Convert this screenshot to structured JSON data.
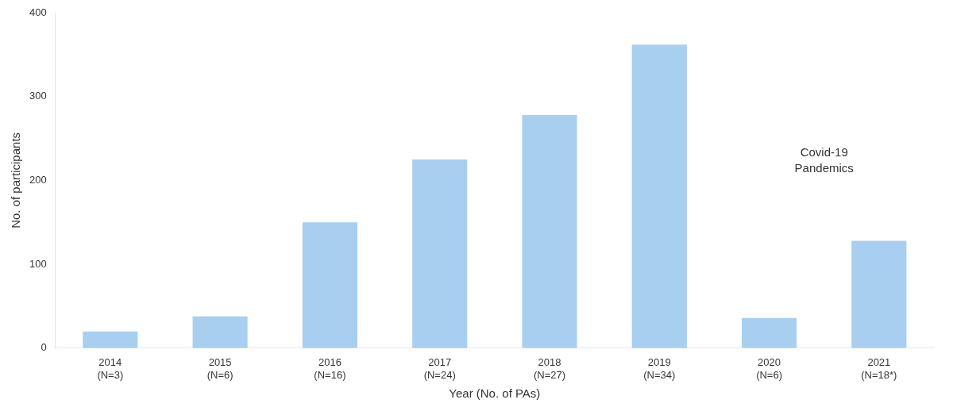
{
  "chart_data": {
    "type": "bar",
    "categories": [
      "2014\n(N=3)",
      "2015\n(N=6)",
      "2016\n(N=16)",
      "2017\n(N=24)",
      "2018\n(N=27)",
      "2019\n(N=34)",
      "2020\n(N=6)",
      "2021\n(N=18*)"
    ],
    "values": [
      20,
      38,
      150,
      225,
      278,
      362,
      36,
      128
    ],
    "color": "#a8cff0",
    "x_label": "Year (No. of PAs)",
    "y_label": "No. of participants",
    "ylim": [
      0,
      400
    ],
    "yticks": [
      0,
      100,
      200,
      300,
      400
    ],
    "grid": false,
    "annotations": [
      "Covid-19\nPandemics"
    ]
  }
}
